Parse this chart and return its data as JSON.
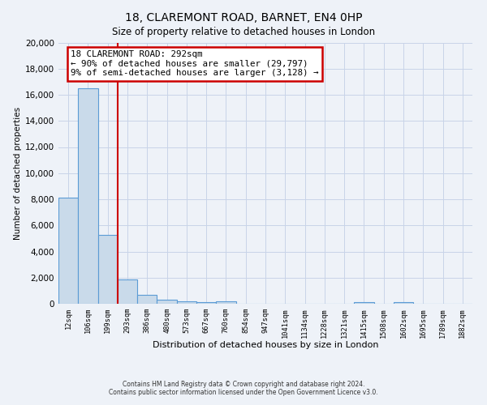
{
  "title": "18, CLAREMONT ROAD, BARNET, EN4 0HP",
  "subtitle": "Size of property relative to detached houses in London",
  "xlabel": "Distribution of detached houses by size in London",
  "ylabel": "Number of detached properties",
  "bar_labels": [
    "12sqm",
    "106sqm",
    "199sqm",
    "293sqm",
    "386sqm",
    "480sqm",
    "573sqm",
    "667sqm",
    "760sqm",
    "854sqm",
    "947sqm",
    "1041sqm",
    "1134sqm",
    "1228sqm",
    "1321sqm",
    "1415sqm",
    "1508sqm",
    "1602sqm",
    "1695sqm",
    "1789sqm",
    "1882sqm"
  ],
  "bar_values": [
    8100,
    16500,
    5300,
    1850,
    700,
    300,
    200,
    150,
    200,
    0,
    0,
    0,
    0,
    0,
    0,
    150,
    0,
    150,
    0,
    0,
    0
  ],
  "bar_color": "#c9daea",
  "bar_edge_color": "#5b9bd5",
  "bar_edge_width": 0.8,
  "red_line_x": 3,
  "red_line_color": "#cc0000",
  "annotation_title": "18 CLAREMONT ROAD: 292sqm",
  "annotation_line1": "← 90% of detached houses are smaller (29,797)",
  "annotation_line2": "9% of semi-detached houses are larger (3,128) →",
  "annotation_box_color": "#ffffff",
  "annotation_box_edge": "#cc0000",
  "ylim": [
    0,
    20000
  ],
  "yticks": [
    0,
    2000,
    4000,
    6000,
    8000,
    10000,
    12000,
    14000,
    16000,
    18000,
    20000
  ],
  "grid_color": "#c8d4e8",
  "footer_line1": "Contains HM Land Registry data © Crown copyright and database right 2024.",
  "footer_line2": "Contains public sector information licensed under the Open Government Licence v3.0.",
  "bg_color": "#eef2f8",
  "plot_bg_color": "#eef2f8"
}
